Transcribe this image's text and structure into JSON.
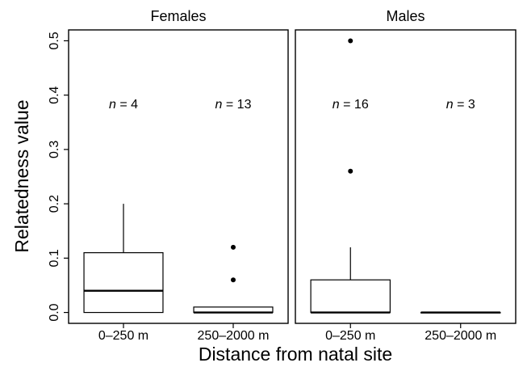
{
  "chart_data": {
    "type": "boxplot",
    "ylabel": "Relatedness value",
    "xlabel": "Distance from natal site",
    "ylim": [
      -0.02,
      0.52
    ],
    "yticks": [
      0.0,
      0.1,
      0.2,
      0.3,
      0.4,
      0.5
    ],
    "ytick_labels": [
      "0.0",
      "0.1",
      "0.2",
      "0.3",
      "0.4",
      "0.5"
    ],
    "grid": false,
    "panels": [
      {
        "title": "Females",
        "categories": [
          "0–250 m",
          "250–2000 m"
        ],
        "boxes": [
          {
            "category": "0–250 m",
            "n_label": "n = 4",
            "n_italic": "n",
            "n_value": "= 4",
            "min": 0.0,
            "q1": 0.0,
            "median": 0.04,
            "q3": 0.11,
            "max": 0.2,
            "outliers": []
          },
          {
            "category": "250–2000 m",
            "n_label": "n = 13",
            "n_italic": "n",
            "n_value": "= 13",
            "min": 0.0,
            "q1": 0.0,
            "median": 0.0,
            "q3": 0.01,
            "max": 0.01,
            "outliers": [
              0.06,
              0.12
            ]
          }
        ]
      },
      {
        "title": "Males",
        "categories": [
          "0–250 m",
          "250–2000 m"
        ],
        "boxes": [
          {
            "category": "0–250 m",
            "n_label": "n = 16",
            "n_italic": "n",
            "n_value": "= 16",
            "min": 0.0,
            "q1": 0.0,
            "median": 0.0,
            "q3": 0.06,
            "max": 0.12,
            "outliers": [
              0.26,
              0.5
            ]
          },
          {
            "category": "250–2000 m",
            "n_label": "n = 3",
            "n_italic": "n",
            "n_value": "= 3",
            "min": 0.0,
            "q1": 0.0,
            "median": 0.0,
            "q3": 0.0,
            "max": 0.0,
            "outliers": []
          }
        ]
      }
    ]
  }
}
